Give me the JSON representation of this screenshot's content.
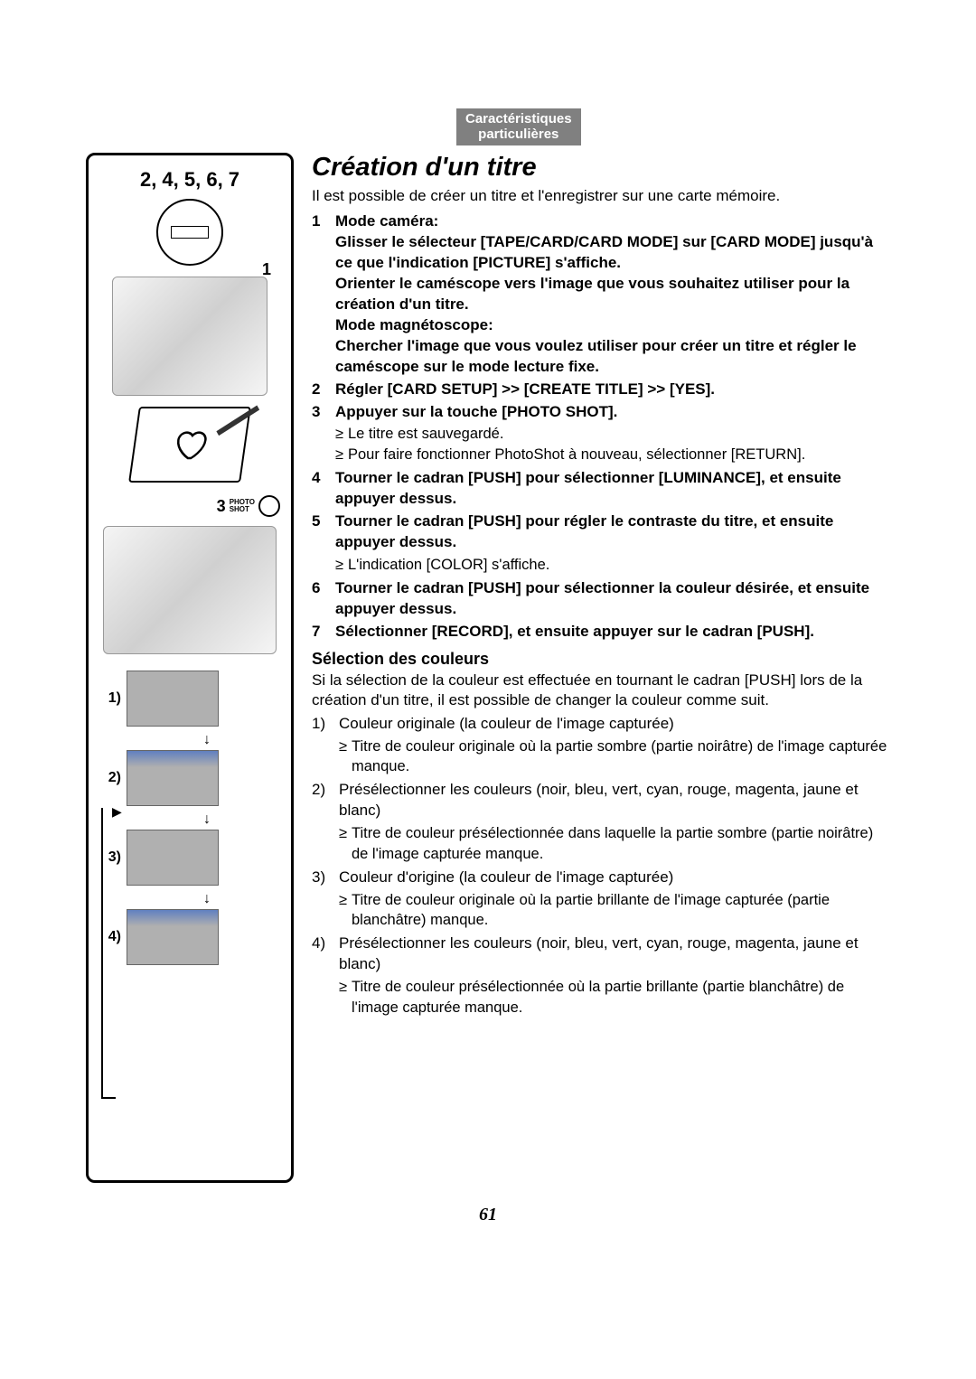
{
  "tab": {
    "line1": "Caractéristiques",
    "line2": "particulières"
  },
  "figure": {
    "numbers": "2, 4, 5, 6, 7",
    "label1": "1",
    "label3_num": "3",
    "label3_text1": "PHOTO",
    "label3_text2": "SHOT",
    "samples": [
      "1)",
      "2)",
      "3)",
      "4)"
    ]
  },
  "title": "Création d'un titre",
  "intro": "Il est possible de créer un titre et l'enregistrer sur une carte mémoire.",
  "steps": [
    {
      "num": "1",
      "bold": "Mode caméra:\nGlisser le sélecteur [TAPE/CARD/CARD MODE] sur [CARD MODE] jusqu'à ce que l'indication [PICTURE] s'affiche.\nOrienter le caméscope vers l'image que vous souhaitez utiliser pour la création d'un titre.\nMode magnétoscope:\nChercher l'image que vous voulez utiliser pour créer un titre et régler le caméscope sur le mode lecture fixe."
    },
    {
      "num": "2",
      "bold": "Régler [CARD SETUP] >> [CREATE TITLE] >> [YES]."
    },
    {
      "num": "3",
      "bold": "Appuyer sur la touche [PHOTO SHOT].",
      "bullets": [
        "Le titre est sauvegardé.",
        "Pour faire fonctionner PhotoShot à nouveau, sélectionner [RETURN]."
      ]
    },
    {
      "num": "4",
      "bold": "Tourner le cadran [PUSH] pour sélectionner [LUMINANCE], et ensuite appuyer dessus."
    },
    {
      "num": "5",
      "bold": "Tourner le cadran [PUSH] pour régler le contraste du titre, et ensuite appuyer dessus.",
      "bullets": [
        "L'indication [COLOR] s'affiche."
      ]
    },
    {
      "num": "6",
      "bold": "Tourner le cadran [PUSH] pour sélectionner la couleur désirée, et ensuite appuyer dessus."
    },
    {
      "num": "7",
      "bold": "Sélectionner [RECORD], et ensuite appuyer sur le cadran [PUSH]."
    }
  ],
  "subheading": "Sélection des couleurs",
  "color_intro": "Si la sélection de la couleur est effectuée en tournant le cadran [PUSH] lors de la création d'un titre, il est possible de changer la couleur comme suit.",
  "colors": [
    {
      "num": "1)",
      "text": "Couleur originale (la couleur de l'image capturée)",
      "bullets": [
        "Titre de couleur originale où la partie sombre (partie noirâtre) de l'image capturée manque."
      ]
    },
    {
      "num": "2)",
      "text": "Présélectionner les couleurs (noir, bleu, vert, cyan, rouge, magenta, jaune et blanc)",
      "bullets": [
        "Titre de couleur présélectionnée dans laquelle la partie sombre (partie noirâtre) de l'image capturée manque."
      ]
    },
    {
      "num": "3)",
      "text": "Couleur d'origine (la couleur de l'image capturée)",
      "bullets": [
        "Titre de couleur originale où la partie brillante de l'image capturée (partie blanchâtre) manque."
      ]
    },
    {
      "num": "4)",
      "text": "Présélectionner les couleurs (noir, bleu, vert, cyan, rouge, magenta, jaune et blanc)",
      "bullets": [
        "Titre de couleur présélectionnée où la partie brillante (partie blanchâtre) de l'image capturée manque."
      ]
    }
  ],
  "page_number": "61"
}
